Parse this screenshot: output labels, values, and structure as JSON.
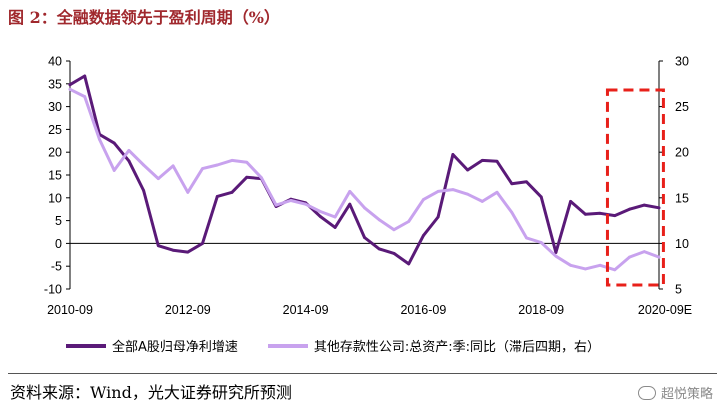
{
  "title": "图 2：全融数据领先于盈利周期（%）",
  "source": "资料来源：Wind，光大证券研究所预测",
  "watermark": "超悦策略",
  "colors": {
    "series1": "#5a1a78",
    "series2": "#c8a2ee",
    "highlight_box": "#e8201a",
    "title": "#a0282d"
  },
  "chart_data": {
    "type": "line",
    "title": "全融数据领先于盈利周期（%）",
    "xlabel": "",
    "ylabel": "",
    "x_tick_labels": [
      "2010-09",
      "2012-09",
      "2014-09",
      "2016-09",
      "2018-09",
      "2020-09E"
    ],
    "ylim_left": [
      -10,
      40
    ],
    "yticks_left": [
      -10,
      -5,
      0,
      5,
      10,
      15,
      20,
      25,
      30,
      35,
      40
    ],
    "ylim_right": [
      5,
      30
    ],
    "yticks_right": [
      5,
      10,
      15,
      20,
      25,
      30
    ],
    "x_range": [
      0,
      40
    ],
    "grid": false,
    "legend_position": "bottom",
    "highlight_region": {
      "x_start": 36.5,
      "x_end": 40.3,
      "style": "dashed-box"
    },
    "series": [
      {
        "name": "全部A股归母净利增速",
        "axis": "left",
        "x": [
          0,
          1,
          2,
          3,
          4,
          5,
          6,
          7,
          8,
          9,
          10,
          11,
          12,
          13,
          14,
          15,
          16,
          17,
          18,
          19,
          20,
          21,
          22,
          23,
          24,
          25,
          26,
          27,
          28,
          29,
          30,
          31,
          32,
          33,
          34,
          35,
          36,
          37,
          38,
          39,
          40
        ],
        "values": [
          34.8,
          36.7,
          23.9,
          22.0,
          18.1,
          11.6,
          -0.5,
          -1.5,
          -1.9,
          0,
          10.3,
          11.2,
          14.5,
          14.2,
          8.1,
          9.7,
          8.9,
          5.9,
          3.5,
          8.6,
          1.3,
          -1.2,
          -2.2,
          -4.5,
          1.7,
          5.8,
          19.5,
          16.1,
          18.2,
          18.0,
          13.1,
          13.5,
          10.2,
          -2.0,
          9.2,
          6.4,
          6.6,
          6.1,
          7.5,
          8.4,
          7.8
        ]
      },
      {
        "name": "其他存款性公司:总资产:季:同比（滞后四期，右）",
        "axis": "right",
        "x": [
          0,
          1,
          2,
          3,
          4,
          5,
          6,
          7,
          8,
          9,
          10,
          11,
          12,
          13,
          14,
          15,
          16,
          17,
          18,
          19,
          20,
          21,
          22,
          23,
          24,
          25,
          26,
          27,
          28,
          29,
          30,
          31,
          32,
          33,
          34,
          35,
          36,
          37,
          38,
          39,
          40
        ],
        "values": [
          26.9,
          26.1,
          21.4,
          18.0,
          20.2,
          18.6,
          17.1,
          18.5,
          15.6,
          18.2,
          18.6,
          19.1,
          18.9,
          17.2,
          14.2,
          14.7,
          14.3,
          13.5,
          12.9,
          15.7,
          13.9,
          12.6,
          11.5,
          12.4,
          14.8,
          15.7,
          15.9,
          15.4,
          14.6,
          15.6,
          13.4,
          10.6,
          10.1,
          8.6,
          7.6,
          7.2,
          7.6,
          7.1,
          8.5,
          9.1,
          8.5
        ]
      }
    ]
  }
}
